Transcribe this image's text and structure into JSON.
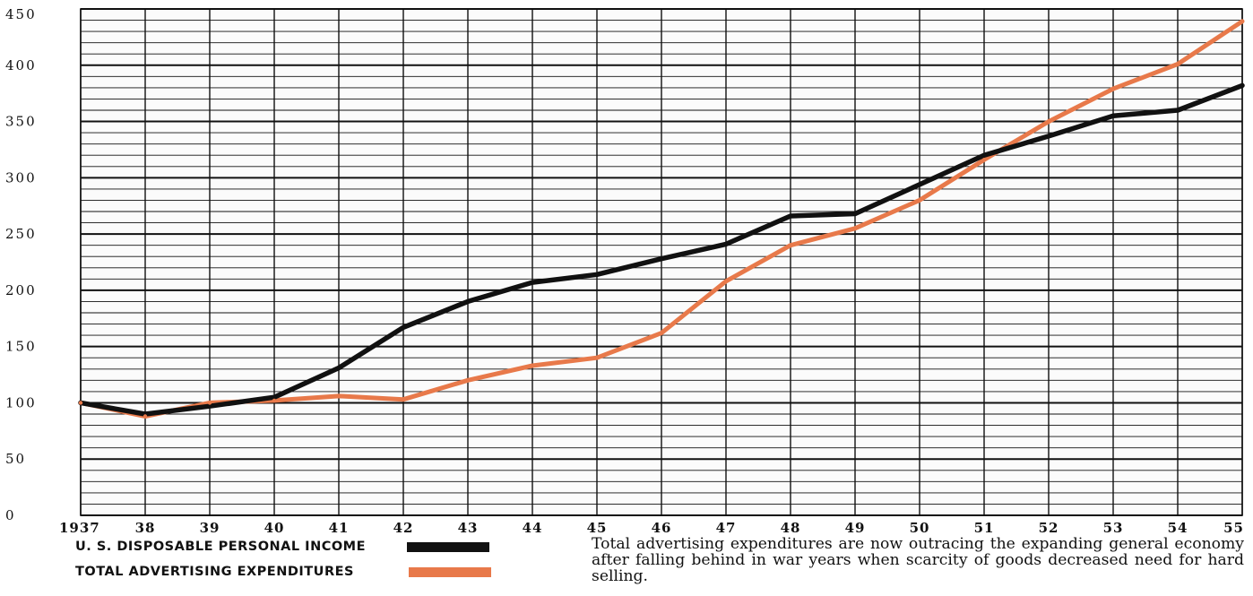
{
  "chart_data": {
    "type": "line",
    "title": "",
    "xlabel": "",
    "ylabel": "",
    "x_tick_labels": [
      "1937",
      "38",
      "39",
      "40",
      "41",
      "42",
      "43",
      "44",
      "45",
      "46",
      "47",
      "48",
      "49",
      "50",
      "51",
      "52",
      "53",
      "54",
      "55"
    ],
    "y_ticks": [
      0,
      50,
      100,
      150,
      200,
      250,
      300,
      350,
      400,
      450
    ],
    "ylim": [
      0,
      450
    ],
    "grid": true,
    "series": [
      {
        "name": "U. S. DISPOSABLE PERSONAL INCOME",
        "color": "#111111",
        "values": [
          100,
          90,
          97,
          105,
          131,
          167,
          190,
          207,
          214,
          228,
          241,
          266,
          268,
          294,
          320,
          337,
          355,
          360,
          382
        ]
      },
      {
        "name": "TOTAL ADVERTISING EXPENDITURES",
        "color": "#e8794a",
        "values": [
          100,
          88,
          100,
          102,
          106,
          103,
          120,
          133,
          140,
          162,
          208,
          240,
          255,
          280,
          316,
          350,
          379,
          401,
          439
        ]
      }
    ],
    "legend_position": "bottom-left",
    "caption": "Total advertising expenditures are now outracing the expanding general economy after falling behind in war years when scarcity of goods decreased need for hard selling."
  }
}
